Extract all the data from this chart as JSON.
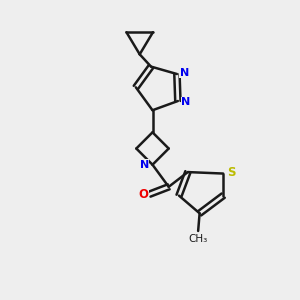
{
  "bg_color": "#eeeeee",
  "bond_color": "#1a1a1a",
  "N_color": "#0000ee",
  "O_color": "#ee0000",
  "S_color": "#bbbb00",
  "line_width": 1.8,
  "fig_w": 3.0,
  "fig_h": 3.0,
  "dpi": 100,
  "xlim": [
    0,
    10
  ],
  "ylim": [
    0,
    10
  ]
}
